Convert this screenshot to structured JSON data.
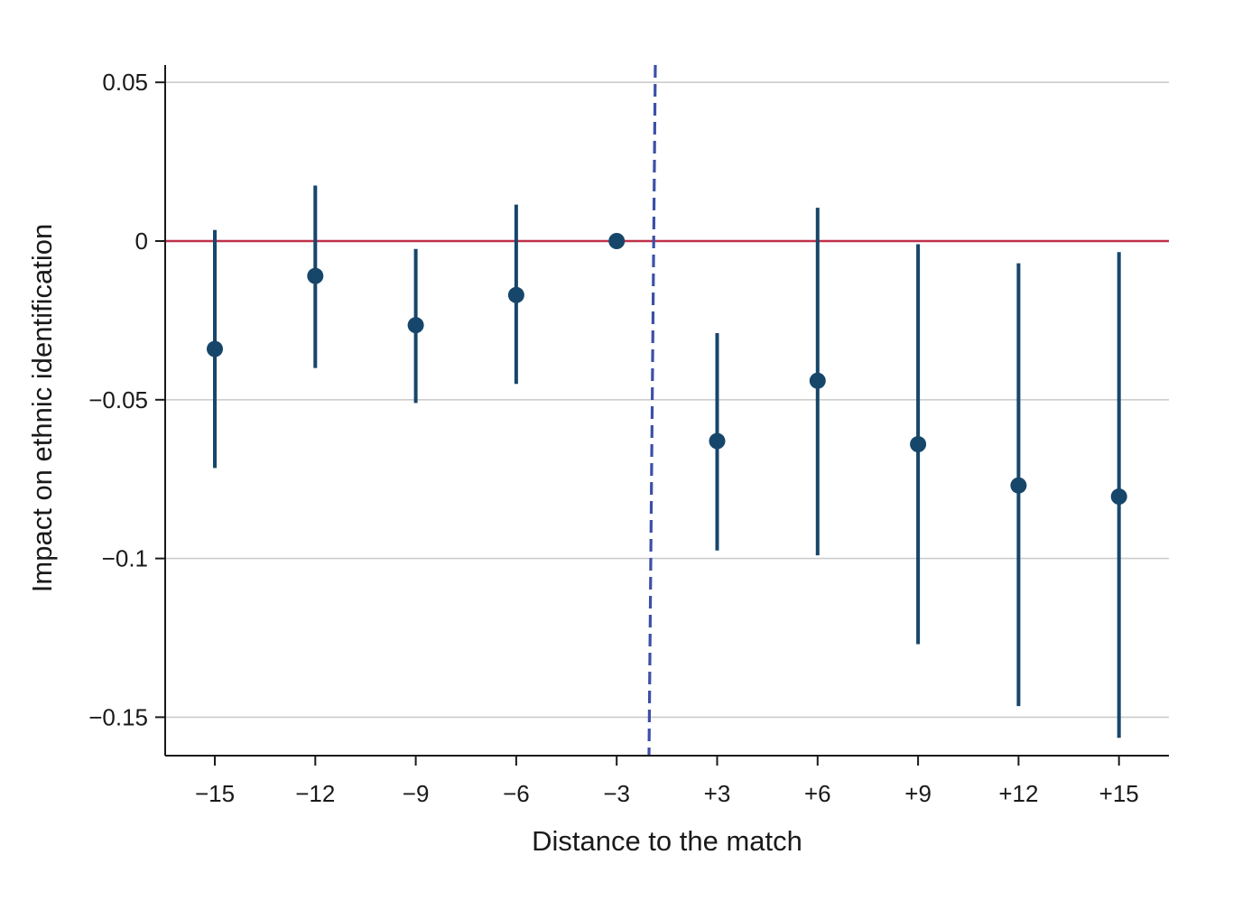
{
  "chart_data": {
    "type": "scatter",
    "subtype": "coefficient plot with confidence intervals",
    "title": "",
    "xlabel": "Distance to the match",
    "ylabel": "Impact on ethnic identification",
    "categories": [
      "−15",
      "−12",
      "−9",
      "−6",
      "−3",
      "+3",
      "+6",
      "+9",
      "+12",
      "+15"
    ],
    "x": [
      -15,
      -12,
      -9,
      -6,
      -3,
      3,
      6,
      9,
      12,
      15
    ],
    "estimates": [
      -0.034,
      -0.011,
      -0.0265,
      -0.017,
      0.0,
      -0.063,
      -0.044,
      -0.064,
      -0.077,
      -0.0805
    ],
    "ci_lower": [
      -0.0715,
      -0.04,
      -0.051,
      -0.045,
      null,
      -0.0975,
      -0.099,
      -0.127,
      -0.1465,
      -0.1565
    ],
    "ci_upper": [
      0.0035,
      0.0175,
      -0.0025,
      0.0115,
      null,
      -0.029,
      0.0105,
      -0.001,
      -0.007,
      -0.0035
    ],
    "ylim": [
      -0.162,
      0.055
    ],
    "yticks": [
      0.05,
      0,
      -0.05,
      -0.1,
      -0.15
    ],
    "ytick_labels": [
      "0.05",
      "0",
      "−0.05",
      "−0.1",
      "−0.15"
    ],
    "grid": "horizontal",
    "reference_line_y": 0,
    "event_line": "dashed vertical line between −3 and +3",
    "legend": "none",
    "colors": {
      "points": "#17466b",
      "reference_line": "#c0304a",
      "event_line": "#3c4fa8",
      "grid": "#cccccc",
      "axis": "#1a1a1a"
    }
  }
}
